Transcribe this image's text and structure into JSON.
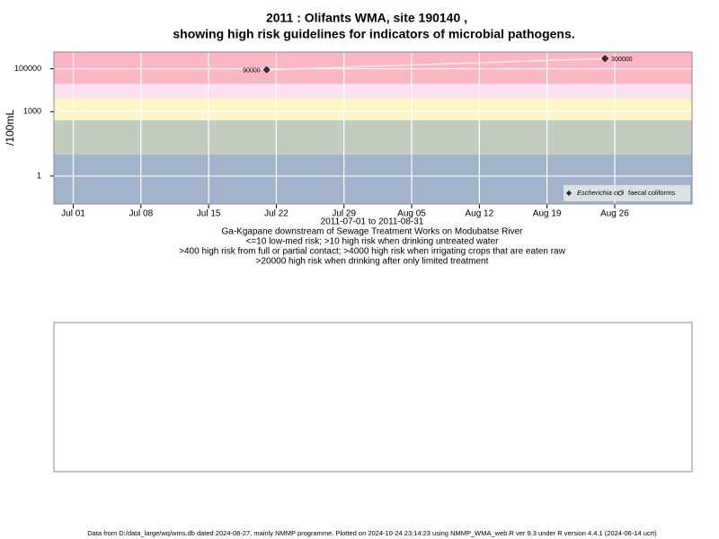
{
  "chart_data": {
    "type": "line",
    "title": "2011 : Olifants WMA, site 190140 ,",
    "title2": "showing high risk guidelines for indicators of microbial pathogens.",
    "ylabel": "/100mL",
    "log_scale": true,
    "grid": true,
    "legend": "bottom-right",
    "xlim": [
      "2011-06-29",
      "2011-09-03"
    ],
    "xticks": [
      {
        "value": "2011-07-01",
        "label": "Jul 01"
      },
      {
        "value": "2011-07-08",
        "label": "Jul 08"
      },
      {
        "value": "2011-07-15",
        "label": "Jul 15"
      },
      {
        "value": "2011-07-22",
        "label": "Jul 22"
      },
      {
        "value": "2011-07-29",
        "label": "Jul 29"
      },
      {
        "value": "2011-08-05",
        "label": "Aug 05"
      },
      {
        "value": "2011-08-12",
        "label": "Aug 12"
      },
      {
        "value": "2011-08-19",
        "label": "Aug 19"
      },
      {
        "value": "2011-08-26",
        "label": "Aug 26"
      }
    ],
    "ylim": [
      0.05,
      600000
    ],
    "yticks": [
      1,
      1000,
      100000
    ],
    "thresholds": [
      10,
      400,
      4000,
      20000
    ],
    "band_colors": [
      "#a3b3c9",
      "#c4ccc0",
      "#fdf6c6",
      "#fde1f0",
      "#fbb6c4"
    ],
    "x": [
      "2011-07-21",
      "2011-08-25"
    ],
    "series": [
      {
        "name": "Escherichia coli",
        "color": "#333333",
        "line_color": "#f4eaea",
        "values": [
          90000,
          300000
        ]
      },
      {
        "name": "faecal coliforms",
        "color": "#ffffff",
        "values": [
          null,
          null
        ]
      }
    ],
    "notes": [
      "2011-07-01 to 2011-08-31",
      "Ga-Kgapane downstream of Sewage Treatment Works on Modubatse River",
      "<=10 low-med risk; >10 high risk when drinking untreated water",
      ">400 high risk from full or partial contact; >4000 high risk when irrigating crops that are eaten raw",
      ">20000 high risk when drinking after only limited treatment"
    ],
    "footer": "Data from D:/data_large/wq/wms.db dated 2024-08-27, mainly NMMP programme. Plotted on 2024-10-24 23:14:23 using NMMP_WMA_web.R ver 9.3 under R version 4.4.1 (2024-06-14 ucrt)"
  }
}
